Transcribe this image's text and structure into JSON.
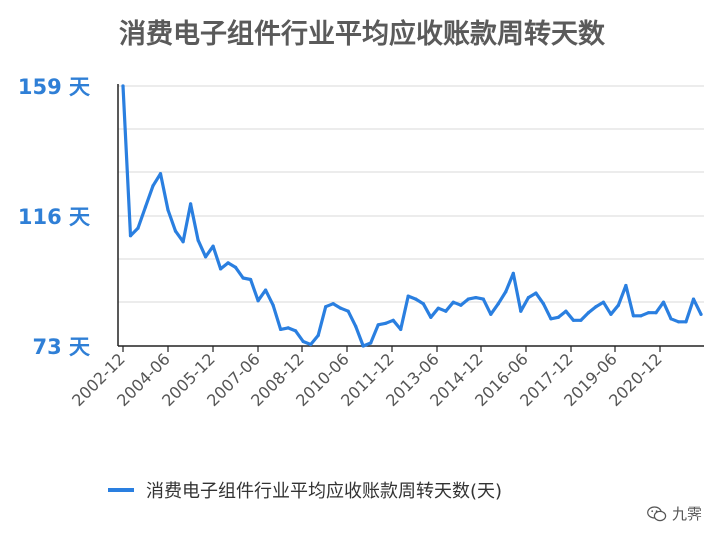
{
  "chart_data": {
    "type": "line",
    "title": "消费电子组件行业平均应收账款周转天数",
    "y_ticks": [
      "159 天",
      "116 天",
      "73 天"
    ],
    "y_tick_values": [
      159,
      116,
      73
    ],
    "ylim": [
      73,
      159
    ],
    "x_ticks": [
      "2002-12",
      "2004-06",
      "2005-12",
      "2007-06",
      "2008-12",
      "2010-06",
      "2011-12",
      "2013-06",
      "2014-12",
      "2016-06",
      "2017-12",
      "2019-06",
      "2020-12"
    ],
    "grid": true,
    "legend_position": "bottom",
    "color": "#2a7fe0",
    "series": [
      {
        "name": "消费电子组件行业平均应收账款周转天数(天)",
        "values": [
          159,
          109.5,
          112,
          119,
          126,
          130,
          118,
          111,
          107.5,
          120,
          108,
          102.5,
          106,
          98.5,
          100.5,
          99,
          95.5,
          95,
          88,
          91.5,
          86.5,
          78.5,
          79,
          78,
          74.5,
          73.5,
          76.5,
          86,
          87,
          85.5,
          84.5,
          79.5,
          73,
          74,
          80,
          80.5,
          81.5,
          78.5,
          89.5,
          88.5,
          87,
          82.5,
          85.5,
          84.5,
          87.5,
          86.5,
          88.5,
          89,
          88.5,
          83.5,
          87,
          91,
          97,
          84.5,
          89,
          90.5,
          87,
          82,
          82.5,
          84.5,
          81.5,
          81.5,
          84,
          86,
          87.5,
          83.5,
          86.5,
          93,
          83,
          83,
          84,
          84,
          87.5,
          82,
          81,
          81,
          88.5,
          83.5
        ]
      }
    ]
  },
  "watermark": {
    "icon": "wechat-icon",
    "text": "九霁"
  }
}
